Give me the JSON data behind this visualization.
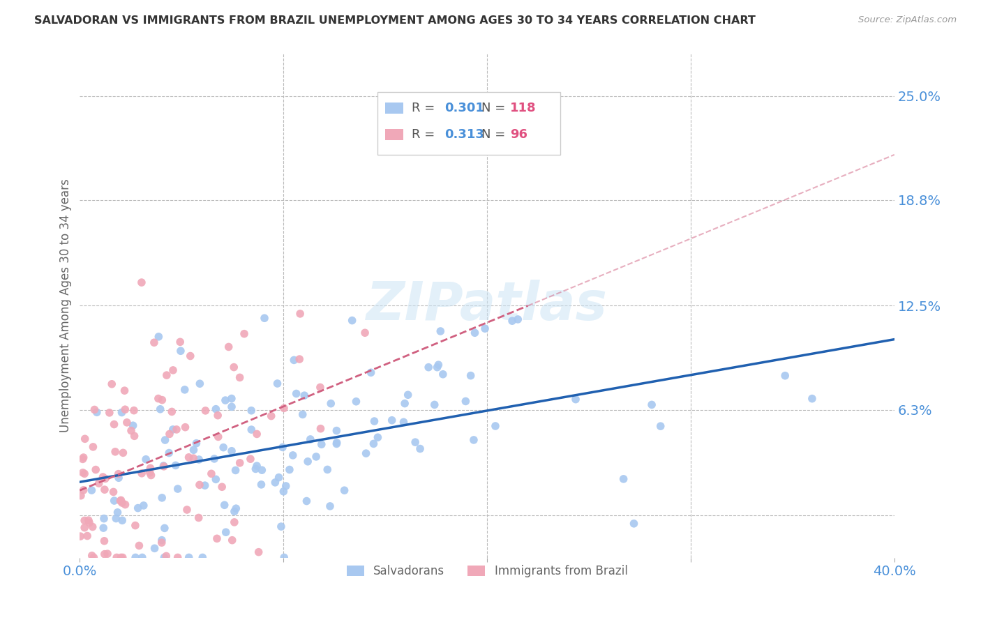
{
  "title": "SALVADORAN VS IMMIGRANTS FROM BRAZIL UNEMPLOYMENT AMONG AGES 30 TO 34 YEARS CORRELATION CHART",
  "source": "Source: ZipAtlas.com",
  "ylabel": "Unemployment Among Ages 30 to 34 years",
  "xlim": [
    0.0,
    0.4
  ],
  "ylim": [
    -0.025,
    0.275
  ],
  "yticks": [
    0.0,
    0.063,
    0.125,
    0.188,
    0.25
  ],
  "ytick_labels": [
    "",
    "6.3%",
    "12.5%",
    "18.8%",
    "25.0%"
  ],
  "watermark": "ZIPatlas",
  "salvadorans_color": "#a8c8f0",
  "brazil_color": "#f0a8b8",
  "salvadorans_line_color": "#2060b0",
  "brazil_line_color": "#d06080",
  "background_color": "#ffffff",
  "grid_color": "#bbbbbb",
  "axis_label_color": "#4a90d9",
  "R_salvadorans": 0.301,
  "N_salvadorans": 118,
  "R_brazil": 0.313,
  "N_brazil": 96,
  "sal_line_x0": 0.0,
  "sal_line_y0": 0.02,
  "sal_line_x1": 0.4,
  "sal_line_y1": 0.105,
  "bra_line_x0": 0.0,
  "bra_line_y0": 0.015,
  "bra_line_x1": 0.22,
  "bra_line_y1": 0.125,
  "seed_salvadorans": 42,
  "seed_brazil": 7
}
